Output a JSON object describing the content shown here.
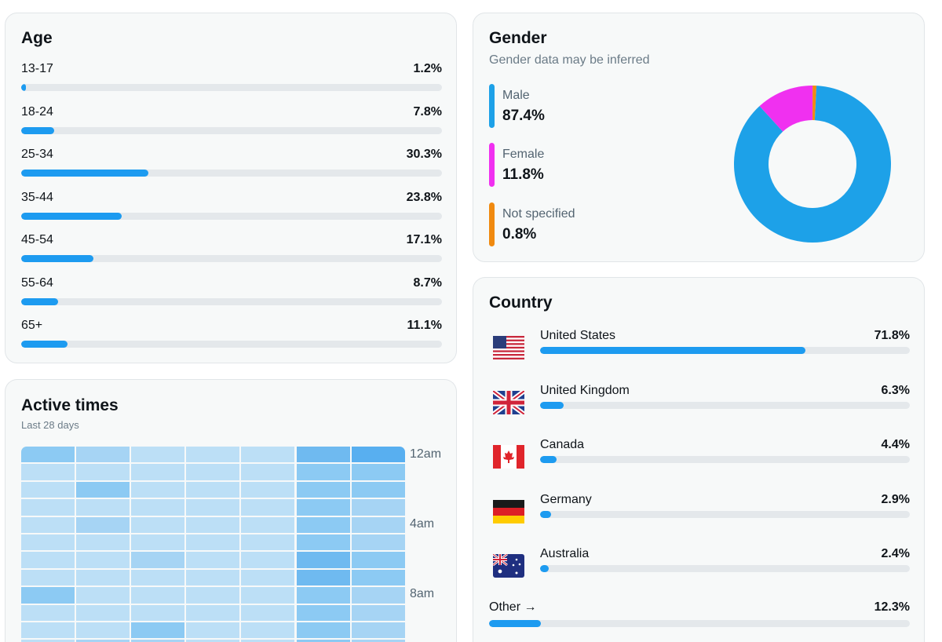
{
  "age": {
    "title": "Age",
    "rows": [
      {
        "label": "13-17",
        "pct": "1.2%",
        "value": 1.2
      },
      {
        "label": "18-24",
        "pct": "7.8%",
        "value": 7.8
      },
      {
        "label": "25-34",
        "pct": "30.3%",
        "value": 30.3
      },
      {
        "label": "35-44",
        "pct": "23.8%",
        "value": 23.8
      },
      {
        "label": "45-54",
        "pct": "17.1%",
        "value": 17.1
      },
      {
        "label": "55-64",
        "pct": "8.7%",
        "value": 8.7
      },
      {
        "label": "65+",
        "pct": "11.1%",
        "value": 11.1
      }
    ],
    "scale_max": 100
  },
  "active": {
    "title": "Active times",
    "subtitle": "Last 28 days",
    "time_labels": [
      "12am",
      "4am",
      "8am"
    ],
    "intensity": [
      [
        3,
        2,
        1,
        1,
        1,
        4,
        5
      ],
      [
        1,
        1,
        1,
        1,
        1,
        3,
        3
      ],
      [
        1,
        3,
        1,
        1,
        1,
        3,
        3
      ],
      [
        1,
        1,
        1,
        1,
        1,
        3,
        2
      ],
      [
        1,
        2,
        1,
        1,
        1,
        3,
        2
      ],
      [
        1,
        1,
        1,
        1,
        1,
        3,
        2
      ],
      [
        1,
        1,
        2,
        1,
        1,
        4,
        3
      ],
      [
        1,
        1,
        1,
        1,
        1,
        4,
        3
      ],
      [
        3,
        1,
        1,
        1,
        1,
        3,
        2
      ],
      [
        1,
        1,
        1,
        1,
        1,
        3,
        2
      ],
      [
        1,
        1,
        3,
        1,
        1,
        3,
        2
      ],
      [
        1,
        2,
        2,
        1,
        1,
        3,
        2
      ]
    ],
    "palette": [
      "#d4ebfa",
      "#bcdff6",
      "#a6d4f4",
      "#8ccaf3",
      "#6fbaf0",
      "#58aff0"
    ]
  },
  "gender": {
    "title": "Gender",
    "subtitle": "Gender data may be inferred",
    "items": [
      {
        "label": "Male",
        "value": "87.4%",
        "share": 87.4,
        "color": "#1da1e8"
      },
      {
        "label": "Female",
        "value": "11.8%",
        "share": 11.8,
        "color": "#f030f0"
      },
      {
        "label": "Not specified",
        "value": "0.8%",
        "share": 0.8,
        "color": "#f08a10"
      }
    ]
  },
  "country": {
    "title": "Country",
    "rows": [
      {
        "name": "United States",
        "pct": "71.8%",
        "value": 71.8,
        "flag": "us-flag-icon"
      },
      {
        "name": "United Kingdom",
        "pct": "6.3%",
        "value": 6.3,
        "flag": "uk-flag-icon"
      },
      {
        "name": "Canada",
        "pct": "4.4%",
        "value": 4.4,
        "flag": "canada-flag-icon"
      },
      {
        "name": "Germany",
        "pct": "2.9%",
        "value": 2.9,
        "flag": "germany-flag-icon"
      },
      {
        "name": "Australia",
        "pct": "2.4%",
        "value": 2.4,
        "flag": "australia-flag-icon"
      }
    ],
    "other": {
      "label": "Other →",
      "pct": "12.3%",
      "value": 12.3
    },
    "scale_max": 100
  },
  "colors": {
    "accent": "#1d9bf0",
    "track": "#e4e8eb"
  }
}
